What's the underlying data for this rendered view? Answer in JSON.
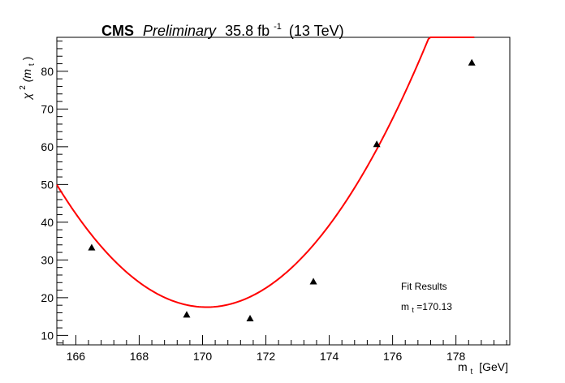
{
  "header": {
    "experiment": "CMS",
    "status": "Preliminary",
    "lumi_value": "35.8 fb",
    "lumi_exp": "-1",
    "energy": "(13 TeV)"
  },
  "annotation": {
    "title": "Fit Results",
    "mt_prefix": "m",
    "mt_sub": "t",
    "mt_value": "=170.13"
  },
  "chart_data": {
    "type": "scatter",
    "xlabel_main": "m",
    "xlabel_sub": "t",
    "xlabel_unit": "[GeV]",
    "ylabel_chi": "χ",
    "ylabel_sup": "2",
    "ylabel_arg_open": "(m",
    "ylabel_arg_sub": "t",
    "ylabel_arg_close": ")",
    "xlim": [
      165.4,
      179.7
    ],
    "ylim": [
      7.5,
      89.0
    ],
    "xticks": [
      166,
      168,
      170,
      172,
      174,
      176,
      178
    ],
    "yticks": [
      10,
      20,
      30,
      40,
      50,
      60,
      70,
      80
    ],
    "points": [
      {
        "x": 166.5,
        "y": 33.3
      },
      {
        "x": 169.5,
        "y": 15.5
      },
      {
        "x": 171.5,
        "y": 14.5
      },
      {
        "x": 173.5,
        "y": 24.3
      },
      {
        "x": 175.5,
        "y": 60.7
      },
      {
        "x": 178.5,
        "y": 82.3
      }
    ],
    "fit": {
      "type": "quadratic",
      "minimum_x": 170.13,
      "minimum_y": 17.5,
      "curvature": 1.45,
      "x_range": [
        165.4,
        178.58
      ]
    },
    "colors": {
      "fit": "#ff0000",
      "markers": "#000000",
      "axes": "#000000"
    },
    "grid": false,
    "legend": "none"
  }
}
